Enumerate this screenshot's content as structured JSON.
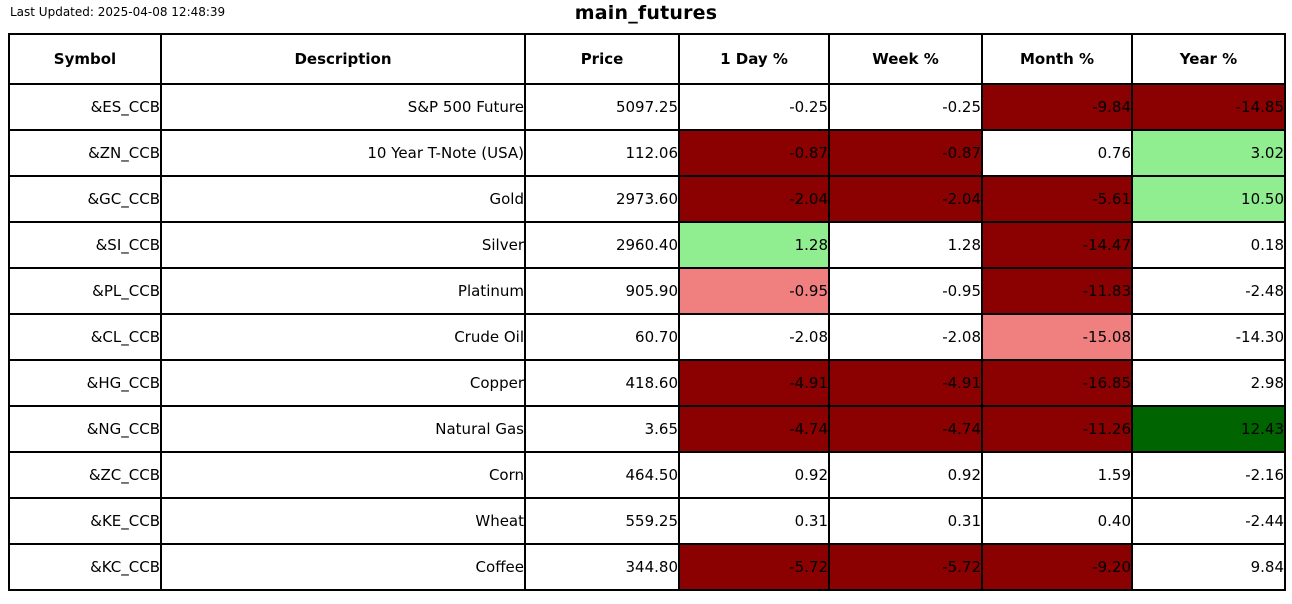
{
  "page": {
    "last_updated": "Last Updated: 2025-04-08 12:48:39",
    "title": "main_futures"
  },
  "colors": {
    "strong_negative": "#8B0000",
    "mild_negative": "#F08080",
    "mild_positive": "#90EE90",
    "strong_positive": "#006400",
    "neutral": "#FFFFFF",
    "border": "#000000",
    "text": "#000000"
  },
  "chart_data": {
    "type": "table",
    "title": "main_futures",
    "columns": [
      "Symbol",
      "Description",
      "Price",
      "1 Day %",
      "Week %",
      "Month %",
      "Year %"
    ],
    "rows": [
      {
        "symbol": "&ES_CCB",
        "description": "S&P 500 Future",
        "price": "5097.25",
        "pct": [
          {
            "value": "-0.25",
            "bg": "neutral"
          },
          {
            "value": "-0.25",
            "bg": "neutral"
          },
          {
            "value": "-9.84",
            "bg": "strong_negative"
          },
          {
            "value": "-14.85",
            "bg": "strong_negative"
          }
        ]
      },
      {
        "symbol": "&ZN_CCB",
        "description": "10 Year T-Note (USA)",
        "price": "112.06",
        "pct": [
          {
            "value": "-0.87",
            "bg": "strong_negative"
          },
          {
            "value": "-0.87",
            "bg": "strong_negative"
          },
          {
            "value": "0.76",
            "bg": "neutral"
          },
          {
            "value": "3.02",
            "bg": "mild_positive"
          }
        ]
      },
      {
        "symbol": "&GC_CCB",
        "description": "Gold",
        "price": "2973.60",
        "pct": [
          {
            "value": "-2.04",
            "bg": "strong_negative"
          },
          {
            "value": "-2.04",
            "bg": "strong_negative"
          },
          {
            "value": "-5.61",
            "bg": "strong_negative"
          },
          {
            "value": "10.50",
            "bg": "mild_positive"
          }
        ]
      },
      {
        "symbol": "&SI_CCB",
        "description": "Silver",
        "price": "2960.40",
        "pct": [
          {
            "value": "1.28",
            "bg": "mild_positive"
          },
          {
            "value": "1.28",
            "bg": "neutral"
          },
          {
            "value": "-14.47",
            "bg": "strong_negative"
          },
          {
            "value": "0.18",
            "bg": "neutral"
          }
        ]
      },
      {
        "symbol": "&PL_CCB",
        "description": "Platinum",
        "price": "905.90",
        "pct": [
          {
            "value": "-0.95",
            "bg": "mild_negative"
          },
          {
            "value": "-0.95",
            "bg": "neutral"
          },
          {
            "value": "-11.83",
            "bg": "strong_negative"
          },
          {
            "value": "-2.48",
            "bg": "neutral"
          }
        ]
      },
      {
        "symbol": "&CL_CCB",
        "description": "Crude Oil",
        "price": "60.70",
        "pct": [
          {
            "value": "-2.08",
            "bg": "neutral"
          },
          {
            "value": "-2.08",
            "bg": "neutral"
          },
          {
            "value": "-15.08",
            "bg": "mild_negative"
          },
          {
            "value": "-14.30",
            "bg": "neutral"
          }
        ]
      },
      {
        "symbol": "&HG_CCB",
        "description": "Copper",
        "price": "418.60",
        "pct": [
          {
            "value": "-4.91",
            "bg": "strong_negative"
          },
          {
            "value": "-4.91",
            "bg": "strong_negative"
          },
          {
            "value": "-16.85",
            "bg": "strong_negative"
          },
          {
            "value": "2.98",
            "bg": "neutral"
          }
        ]
      },
      {
        "symbol": "&NG_CCB",
        "description": "Natural Gas",
        "price": "3.65",
        "pct": [
          {
            "value": "-4.74",
            "bg": "strong_negative"
          },
          {
            "value": "-4.74",
            "bg": "strong_negative"
          },
          {
            "value": "-11.26",
            "bg": "strong_negative"
          },
          {
            "value": "12.43",
            "bg": "strong_positive"
          }
        ]
      },
      {
        "symbol": "&ZC_CCB",
        "description": "Corn",
        "price": "464.50",
        "pct": [
          {
            "value": "0.92",
            "bg": "neutral"
          },
          {
            "value": "0.92",
            "bg": "neutral"
          },
          {
            "value": "1.59",
            "bg": "neutral"
          },
          {
            "value": "-2.16",
            "bg": "neutral"
          }
        ]
      },
      {
        "symbol": "&KE_CCB",
        "description": "Wheat",
        "price": "559.25",
        "pct": [
          {
            "value": "0.31",
            "bg": "neutral"
          },
          {
            "value": "0.31",
            "bg": "neutral"
          },
          {
            "value": "0.40",
            "bg": "neutral"
          },
          {
            "value": "-2.44",
            "bg": "neutral"
          }
        ]
      },
      {
        "symbol": "&KC_CCB",
        "description": "Coffee",
        "price": "344.80",
        "pct": [
          {
            "value": "-5.72",
            "bg": "strong_negative"
          },
          {
            "value": "-5.72",
            "bg": "strong_negative"
          },
          {
            "value": "-9.20",
            "bg": "strong_negative"
          },
          {
            "value": "9.84",
            "bg": "neutral"
          }
        ]
      }
    ]
  }
}
